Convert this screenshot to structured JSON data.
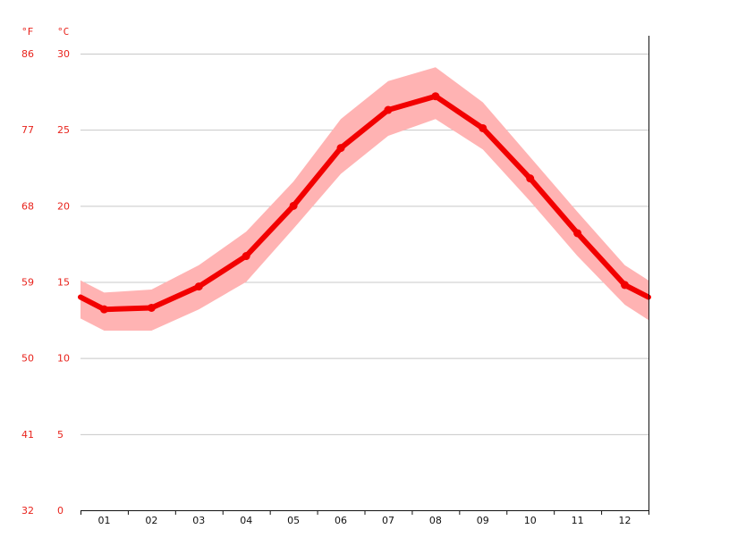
{
  "chart_data": {
    "type": "line",
    "title": "",
    "xlabel": "",
    "ylabel": "",
    "units": {
      "fahrenheit": "°F",
      "celsius": "°C"
    },
    "categories": [
      "01",
      "02",
      "03",
      "04",
      "05",
      "06",
      "07",
      "08",
      "09",
      "10",
      "11",
      "12"
    ],
    "y_ticks_celsius": [
      "0",
      "5",
      "10",
      "15",
      "20",
      "25",
      "30"
    ],
    "y_ticks_fahrenheit": [
      "32",
      "41",
      "50",
      "59",
      "68",
      "77",
      "86"
    ],
    "ylim": [
      0,
      30
    ],
    "grid": true,
    "series": [
      {
        "values": [
          13.2,
          13.3,
          14.7,
          16.7,
          20.0,
          23.8,
          26.3,
          27.2,
          25.1,
          21.8,
          18.2,
          14.8
        ]
      }
    ],
    "range_band": {
      "low": [
        11.8,
        11.8,
        13.2,
        15.0,
        18.5,
        22.1,
        24.6,
        25.7,
        23.7,
        20.3,
        16.7,
        13.5
      ],
      "high": [
        14.3,
        14.5,
        16.1,
        18.3,
        21.6,
        25.7,
        28.2,
        29.1,
        26.8,
        23.2,
        19.6,
        16.1
      ]
    },
    "edge_values": {
      "left": 14.0,
      "right": 14.0
    },
    "colors": {
      "line": "#f20000",
      "band": "#ffb3b3",
      "grid": "#c8c8c8",
      "axis": "#111111",
      "tick_label": "#e8231c"
    }
  }
}
